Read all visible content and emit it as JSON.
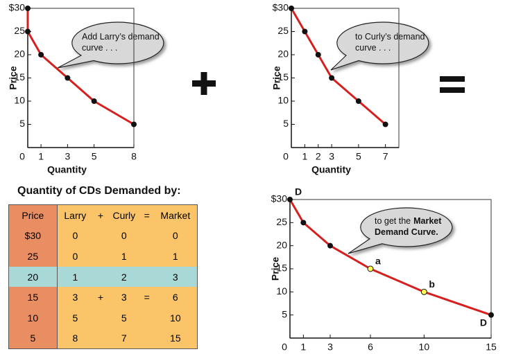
{
  "chart_data": [
    {
      "type": "line",
      "ylabel": "Price",
      "xlabel": "Quantity",
      "x": [
        0,
        0,
        1,
        3,
        5,
        8
      ],
      "values": [
        30,
        25,
        20,
        15,
        10,
        5
      ],
      "color": "#d62020",
      "marker_color": "#111",
      "xlim": [
        0,
        8
      ],
      "ylim": [
        0,
        30
      ],
      "xticks": [
        0,
        1,
        3,
        5,
        8
      ],
      "yticks": [
        5,
        10,
        15,
        20,
        25,
        {
          "value": 30,
          "label": "$30"
        }
      ],
      "callout": [
        [
          "Add Larry’s demand"
        ],
        [
          "curve . . ."
        ]
      ]
    },
    {
      "type": "line",
      "ylabel": "Price",
      "xlabel": "Quantity",
      "x": [
        0,
        1,
        2,
        3,
        5,
        7
      ],
      "values": [
        30,
        25,
        20,
        15,
        10,
        5
      ],
      "color": "#d62020",
      "marker_color": "#111",
      "xlim": [
        0,
        8
      ],
      "ylim": [
        0,
        30
      ],
      "xticks": [
        0,
        1,
        2,
        3,
        5,
        7
      ],
      "yticks": [
        5,
        10,
        15,
        20,
        25,
        {
          "value": 30,
          "label": "$30"
        }
      ],
      "callout": [
        [
          "to Curly’s demand"
        ],
        [
          "curve . . ."
        ]
      ]
    },
    {
      "type": "line",
      "ylabel": "Price",
      "x": [
        0,
        1,
        3,
        6,
        10,
        15
      ],
      "values": [
        30,
        25,
        20,
        15,
        10,
        5
      ],
      "color": "#d62020",
      "marker_color": "#111",
      "highlight_color": "#ffff55",
      "point_labels": [
        null,
        null,
        null,
        "a",
        "b",
        null
      ],
      "curve_labels": [
        "D",
        "D"
      ],
      "xlim": [
        0,
        15
      ],
      "ylim": [
        0,
        30
      ],
      "xticks": [
        0,
        1,
        3,
        6,
        10,
        15
      ],
      "yticks": [
        5,
        10,
        15,
        20,
        25,
        {
          "value": 30,
          "label": "$30"
        }
      ],
      "callout": [
        [
          "to get the",
          "Market"
        ],
        [
          "Demand Curve."
        ]
      ]
    }
  ],
  "table": {
    "title": "Quantity of CDs Demanded by:",
    "header": [
      "Price",
      "Larry",
      "+",
      "Curly",
      "=",
      "Market"
    ],
    "rows": [
      [
        "$30",
        "0",
        null,
        "0",
        null,
        "0"
      ],
      [
        "25",
        "0",
        null,
        "1",
        null,
        "1"
      ],
      [
        "20",
        "1",
        null,
        "2",
        null,
        "3"
      ],
      [
        "15",
        "3",
        "+",
        "3",
        "=",
        "6"
      ],
      [
        "10",
        "5",
        null,
        "5",
        null,
        "10"
      ],
      [
        "5",
        "8",
        null,
        "7",
        null,
        "15"
      ]
    ]
  }
}
